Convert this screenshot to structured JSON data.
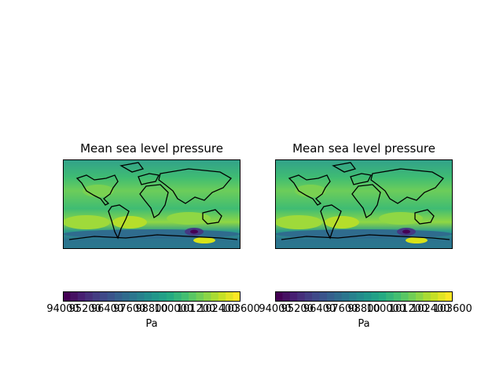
{
  "panels": [
    {
      "title": "Mean sea level pressure",
      "unit": "Pa"
    },
    {
      "title": "Mean sea level pressure",
      "unit": "Pa"
    }
  ],
  "colorbar": {
    "colormap": "viridis",
    "min": 94000,
    "max": 103600,
    "step": 400,
    "tick_labels": [
      "94000",
      "95200",
      "96400",
      "97600",
      "98800",
      "100000",
      "101200",
      "102400",
      "103600"
    ]
  },
  "map": {
    "projection": "PlateCarree",
    "extent": [
      -180,
      180,
      -90,
      90
    ],
    "coastlines": true,
    "low_pressure_center": "Southern Ocean near 120E",
    "background_field": "near 101000 Pa"
  }
}
